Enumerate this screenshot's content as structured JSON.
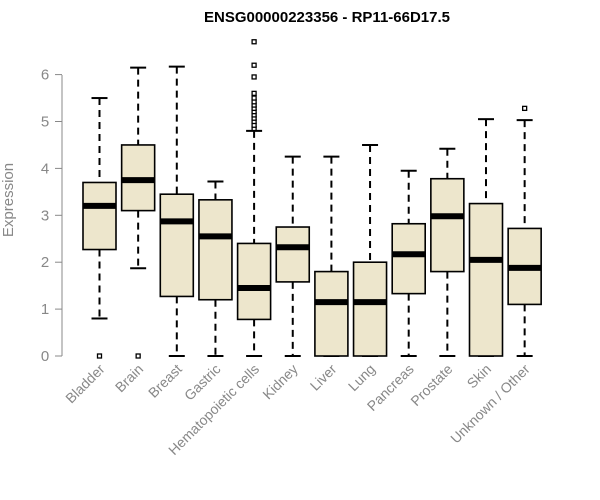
{
  "chart_data": {
    "type": "boxplot",
    "title": "ENSG00000223356 - RP11-66D17.5",
    "xlabel": "",
    "ylabel": "Expression",
    "ylim": [
      0,
      6.9
    ],
    "yticks": [
      0,
      1,
      2,
      3,
      4,
      5,
      6
    ],
    "colors": {
      "box_fill": "#ede6cc",
      "stroke": "#000000",
      "axis_text": "#888888"
    },
    "categories": [
      "Bladder",
      "Brain",
      "Breast",
      "Gastric",
      "Hematopoietic cells",
      "Kidney",
      "Liver",
      "Lung",
      "Pancreas",
      "Prostate",
      "Skin",
      "Unknown / Other"
    ],
    "boxes": [
      {
        "label": "Bladder",
        "whisker_low": 0.8,
        "q1": 2.27,
        "median": 3.2,
        "q3": 3.7,
        "whisker_high": 5.5,
        "outliers": [
          0.0
        ]
      },
      {
        "label": "Brain",
        "whisker_low": 1.87,
        "q1": 3.1,
        "median": 3.75,
        "q3": 4.5,
        "whisker_high": 6.15,
        "outliers": [
          0.0
        ]
      },
      {
        "label": "Breast",
        "whisker_low": 0.0,
        "q1": 1.27,
        "median": 2.87,
        "q3": 3.45,
        "whisker_high": 6.17,
        "outliers": []
      },
      {
        "label": "Gastric",
        "whisker_low": 0.0,
        "q1": 1.2,
        "median": 2.55,
        "q3": 3.33,
        "whisker_high": 3.72,
        "outliers": []
      },
      {
        "label": "Hematopoietic cells",
        "whisker_low": 0.0,
        "q1": 0.78,
        "median": 1.45,
        "q3": 2.4,
        "whisker_high": 4.8,
        "outliers": [
          4.85,
          4.92,
          5.0,
          5.07,
          5.14,
          5.21,
          5.28,
          5.35,
          5.42,
          5.5,
          5.6,
          5.95,
          6.2,
          6.7
        ]
      },
      {
        "label": "Kidney",
        "whisker_low": 0.0,
        "q1": 1.58,
        "median": 2.32,
        "q3": 2.75,
        "whisker_high": 4.25,
        "outliers": []
      },
      {
        "label": "Liver",
        "whisker_low": 0.0,
        "q1": 0.0,
        "median": 1.15,
        "q3": 1.8,
        "whisker_high": 4.25,
        "outliers": []
      },
      {
        "label": "Lung",
        "whisker_low": 0.0,
        "q1": 0.0,
        "median": 1.15,
        "q3": 2.0,
        "whisker_high": 4.5,
        "outliers": []
      },
      {
        "label": "Pancreas",
        "whisker_low": 0.0,
        "q1": 1.33,
        "median": 2.17,
        "q3": 2.82,
        "whisker_high": 3.95,
        "outliers": []
      },
      {
        "label": "Prostate",
        "whisker_low": 0.0,
        "q1": 1.8,
        "median": 2.98,
        "q3": 3.78,
        "whisker_high": 4.42,
        "outliers": []
      },
      {
        "label": "Skin",
        "whisker_low": 0.0,
        "q1": 0.0,
        "median": 2.05,
        "q3": 3.25,
        "whisker_high": 5.05,
        "outliers": []
      },
      {
        "label": "Unknown / Other",
        "whisker_low": 0.0,
        "q1": 1.1,
        "median": 1.88,
        "q3": 2.72,
        "whisker_high": 5.03,
        "outliers": [
          5.28
        ]
      }
    ]
  }
}
